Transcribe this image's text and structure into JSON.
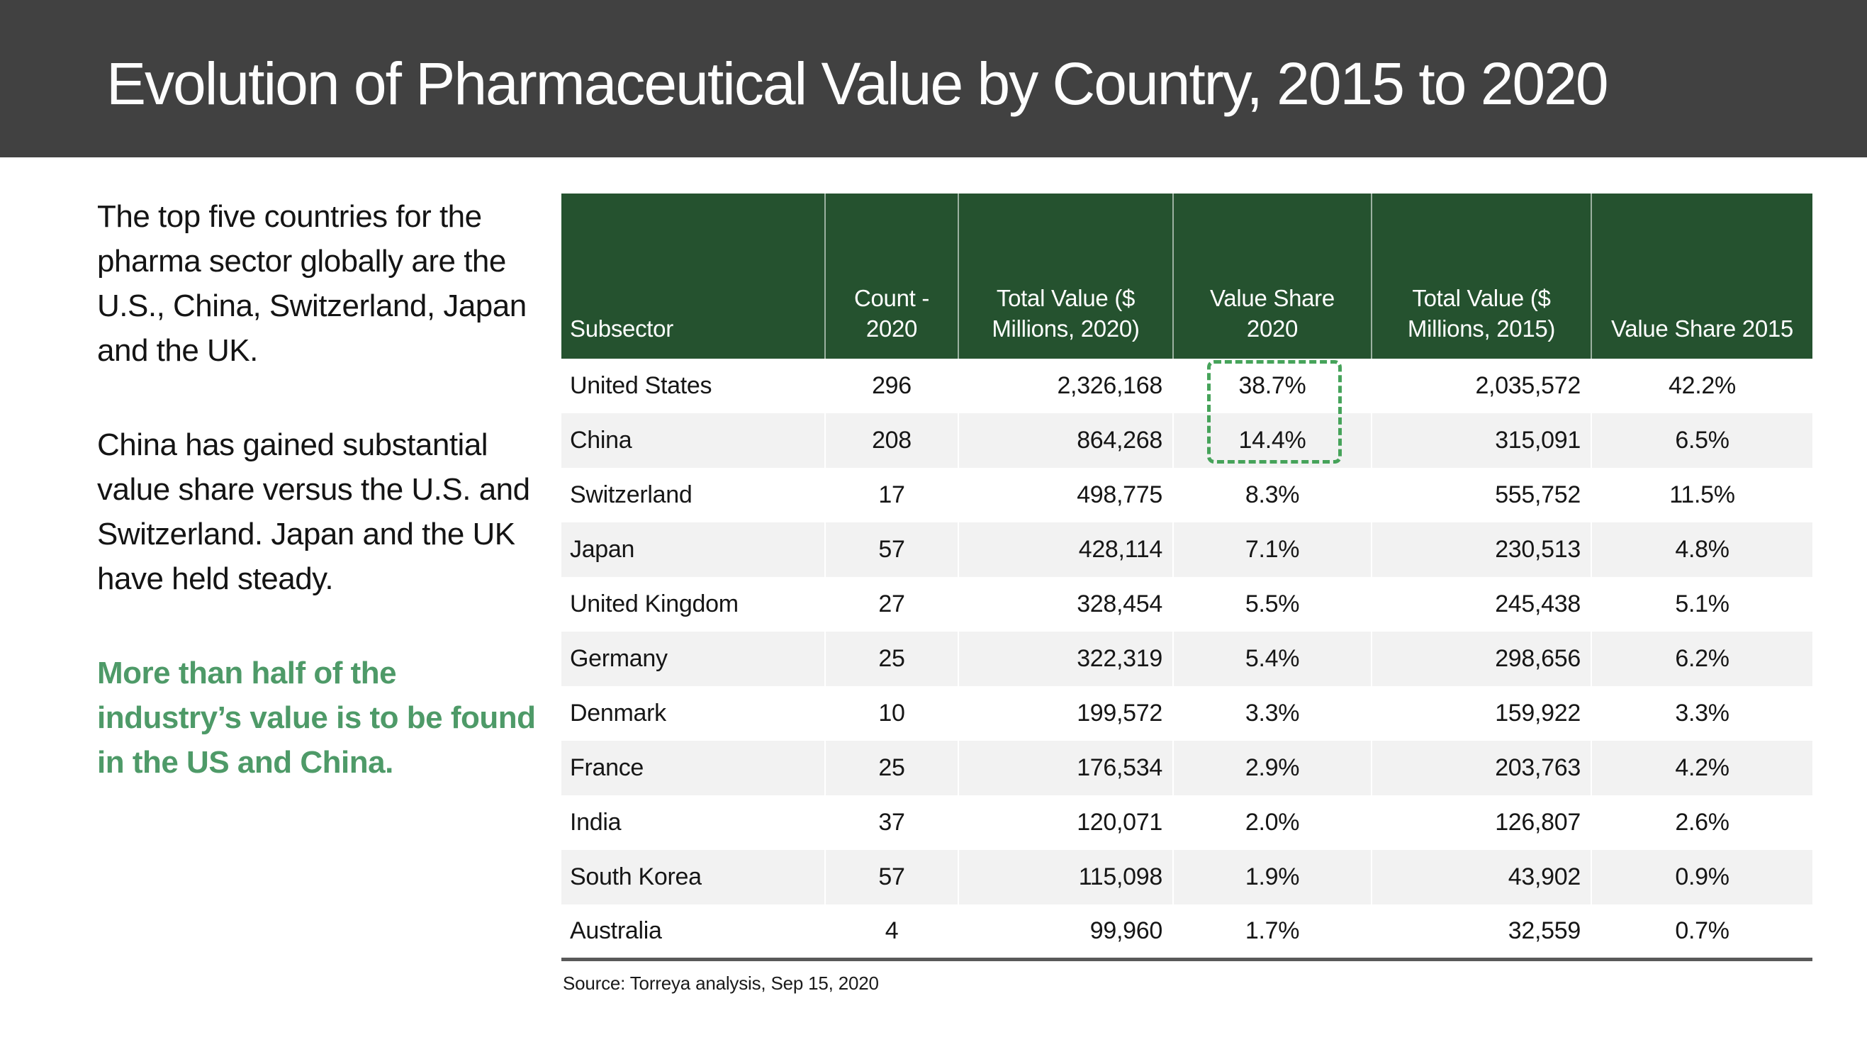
{
  "slide": {
    "title": "Evolution of Pharmaceutical Value by Country, 2015 to 2020",
    "source_note": "Source: Torreya analysis, Sep 15, 2020"
  },
  "commentary": {
    "paragraph_1": "The top five countries for the pharma sector globally are the U.S., China, Switzerland, Japan and the UK.",
    "paragraph_2": "China has gained substantial value share versus the U.S. and Switzerland. Japan and the UK have held steady.",
    "paragraph_3": "More than half of the industry’s value is to be found in the US and China."
  },
  "table": {
    "columns": [
      "Subsector",
      "Count - 2020",
      "Total Value ($ Millions, 2020)",
      "Value Share 2020",
      "Total Value ($ Millions, 2015)",
      "Value Share 2015"
    ],
    "rows": [
      [
        "United States",
        "296",
        "2,326,168",
        "38.7%",
        "2,035,572",
        "42.2%"
      ],
      [
        "China",
        "208",
        "864,268",
        "14.4%",
        "315,091",
        "6.5%"
      ],
      [
        "Switzerland",
        "17",
        "498,775",
        "8.3%",
        "555,752",
        "11.5%"
      ],
      [
        "Japan",
        "57",
        "428,114",
        "7.1%",
        "230,513",
        "4.8%"
      ],
      [
        "United Kingdom",
        "27",
        "328,454",
        "5.5%",
        "245,438",
        "5.1%"
      ],
      [
        "Germany",
        "25",
        "322,319",
        "5.4%",
        "298,656",
        "6.2%"
      ],
      [
        "Denmark",
        "10",
        "199,572",
        "3.3%",
        "159,922",
        "3.3%"
      ],
      [
        "France",
        "25",
        "176,534",
        "2.9%",
        "203,763",
        "4.2%"
      ],
      [
        "India",
        "37",
        "120,071",
        "2.0%",
        "126,807",
        "2.6%"
      ],
      [
        "South Korea",
        "57",
        "115,098",
        "1.9%",
        "43,902",
        "0.9%"
      ],
      [
        "Australia",
        "4",
        "99,960",
        "1.7%",
        "32,559",
        "0.7%"
      ]
    ],
    "highlight": {
      "column": "Value Share 2020",
      "highlighted_rows": [
        "United States",
        "China"
      ],
      "highlighted_values": [
        "38.7%",
        "14.4%"
      ]
    }
  },
  "colors": {
    "titlebar": "#414141",
    "header-green": "#25522f",
    "stripe": "#f2f2f2",
    "rule": "#595959",
    "green-text": "#4e9a68",
    "highlight-green": "#46a35a"
  }
}
